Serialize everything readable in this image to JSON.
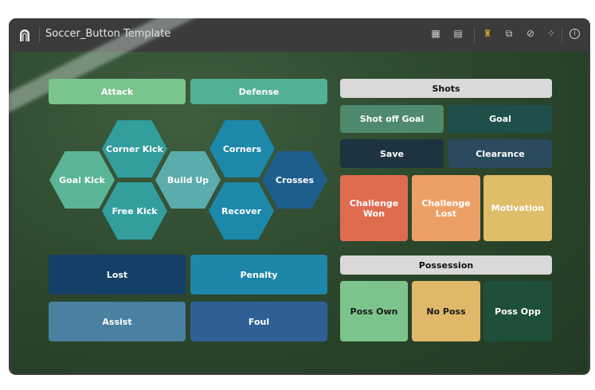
{
  "window": {
    "title": "Soccer_Button Template"
  },
  "toolbar": {
    "icons": [
      "edit-table-icon",
      "data-file-icon",
      "chess-piece-icon",
      "export-icon",
      "hide-formula-icon",
      "network-icon",
      "info-icon"
    ],
    "active_color": "#d4a12a"
  },
  "left": {
    "attack": "Attack",
    "defense": "Defense",
    "hexes": {
      "goal_kick": "Goal Kick",
      "corner_kick": "Corner Kick",
      "free_kick": "Free Kick",
      "build_up": "Build Up",
      "corners": "Corners",
      "recover": "Recover",
      "crosses": "Crosses"
    },
    "lost": "Lost",
    "penalty": "Penalty",
    "assist": "Assist",
    "foul": "Foul"
  },
  "shots": {
    "header": "Shots",
    "shot_off_goal": "Shot off Goal",
    "goal": "Goal",
    "save": "Save",
    "clearance": "Clearance",
    "challenge_won": "Challenge Won",
    "challenge_lost": "Challenge Lost",
    "motivation": "Motivation"
  },
  "possession": {
    "header": "Possession",
    "poss_own": "Poss Own",
    "no_poss": "No Poss",
    "poss_opp": "Poss Opp"
  }
}
